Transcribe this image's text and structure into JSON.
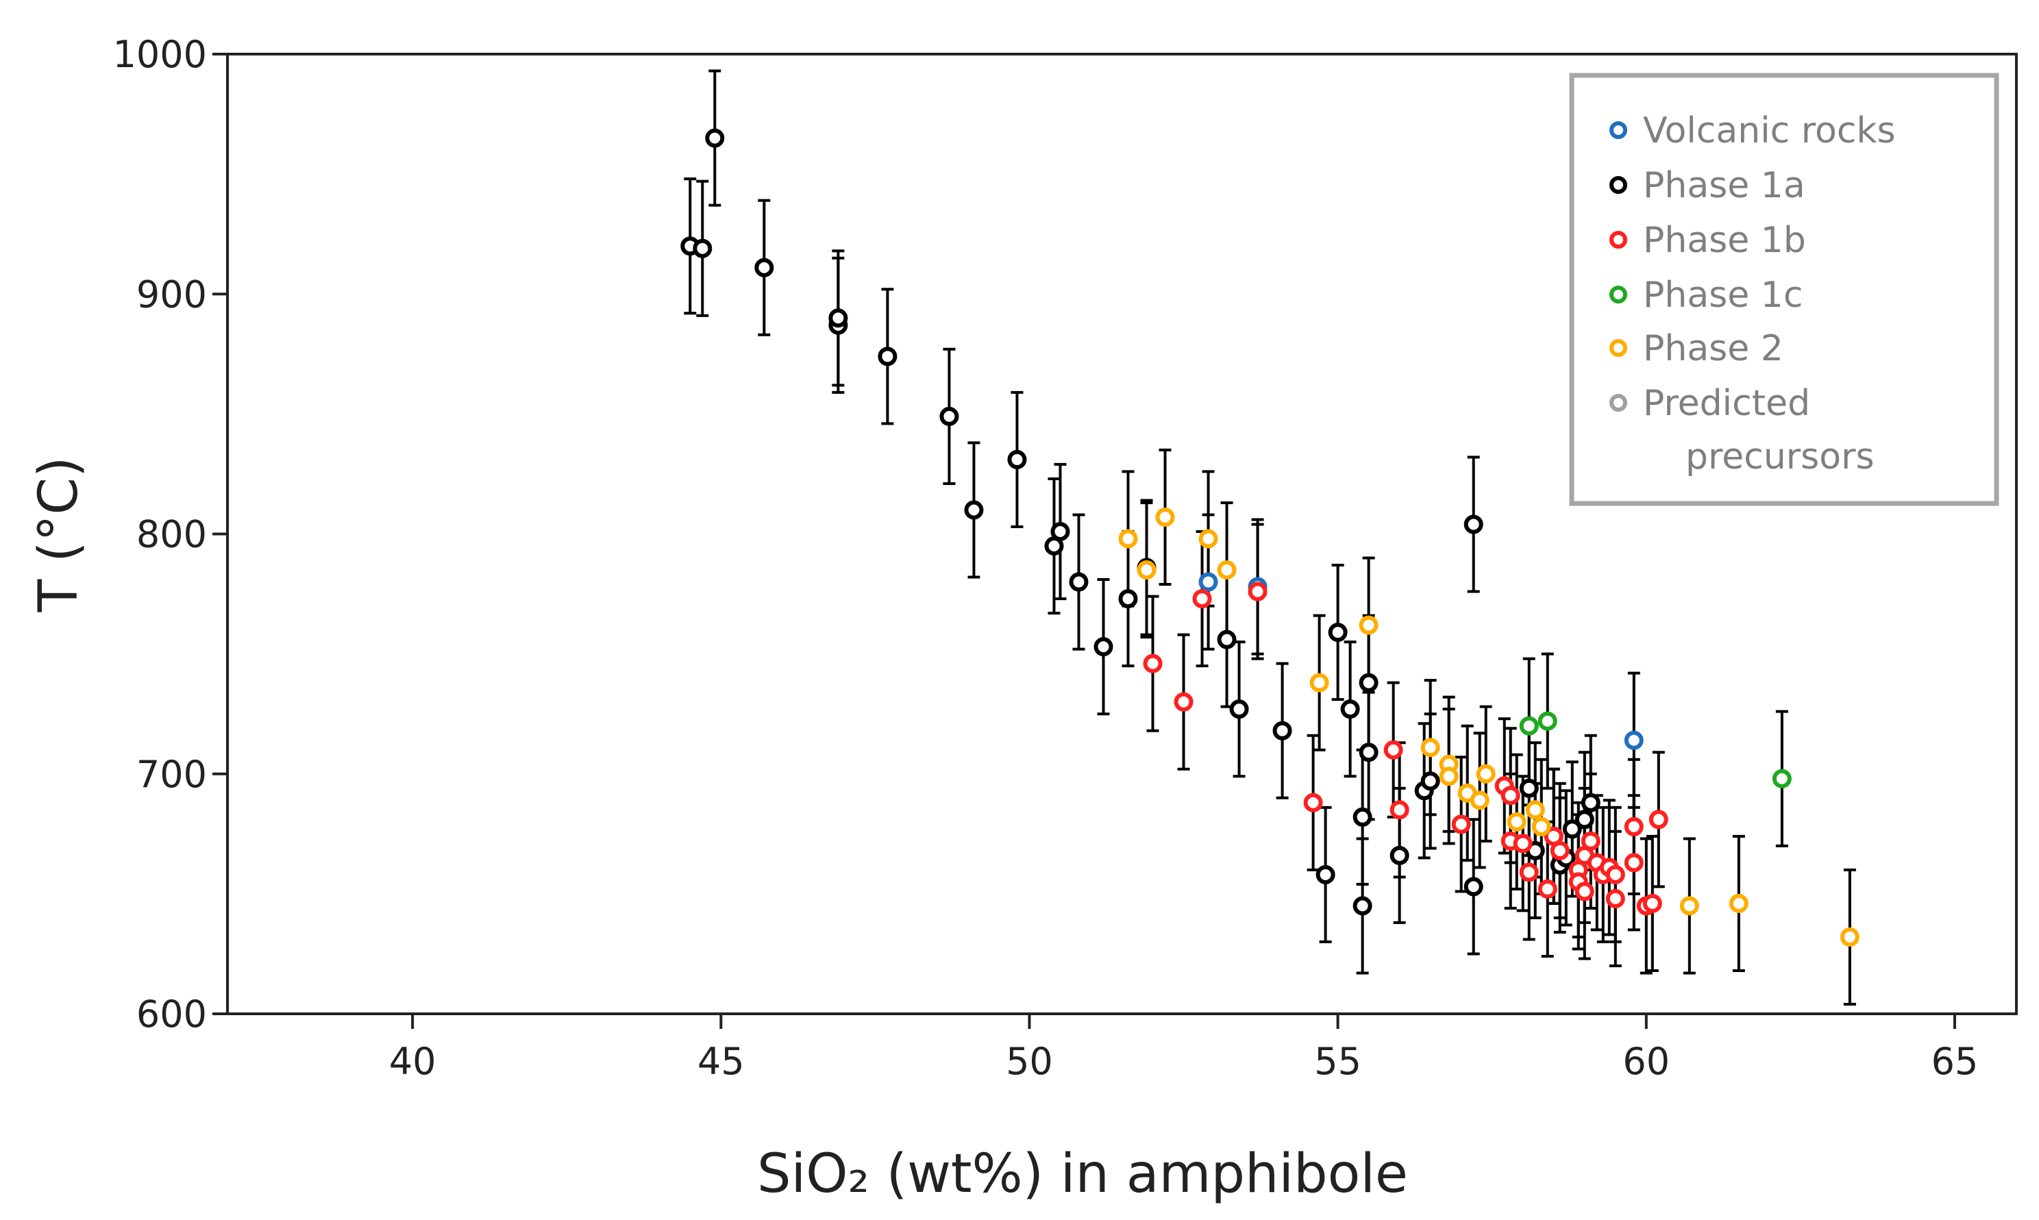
{
  "chart_data": {
    "type": "scatter",
    "title": "",
    "xlabel": "SiO₂ (wt%) in amphibole",
    "ylabel": "T (°C)",
    "xlim": [
      37,
      66
    ],
    "ylim": [
      600,
      1000
    ],
    "xticks": [
      40,
      45,
      50,
      55,
      60,
      65
    ],
    "yticks": [
      600,
      700,
      800,
      900,
      1000
    ],
    "error_bar_halfwidth": 28,
    "grid": false,
    "legend_position": "top-right",
    "legend": [
      {
        "label": "Volcanic rocks",
        "color": "#1f6fbf"
      },
      {
        "label": "Phase 1a",
        "color": "#000000"
      },
      {
        "label": "Phase 1b",
        "color": "#ff2020"
      },
      {
        "label": "Phase 1c",
        "color": "#1fa81f"
      },
      {
        "label": "Phase 2",
        "color": "#ffad00"
      },
      {
        "label": "Predicted",
        "color": "#a0a0a0"
      },
      {
        "label": "precursors",
        "color": ""
      }
    ],
    "series": [
      {
        "name": "Volcanic rocks",
        "color": "#1f6fbf",
        "points": [
          [
            52.9,
            780
          ],
          [
            53.7,
            778
          ],
          [
            59.8,
            714
          ]
        ]
      },
      {
        "name": "Phase 1a",
        "color": "#000000",
        "points": [
          [
            44.5,
            920
          ],
          [
            44.7,
            919
          ],
          [
            44.9,
            965
          ],
          [
            45.7,
            911
          ],
          [
            46.9,
            887
          ],
          [
            46.9,
            890
          ],
          [
            47.7,
            874
          ],
          [
            48.7,
            849
          ],
          [
            49.1,
            810
          ],
          [
            49.8,
            831
          ],
          [
            50.4,
            795
          ],
          [
            50.5,
            801
          ],
          [
            50.8,
            780
          ],
          [
            51.2,
            753
          ],
          [
            51.6,
            773
          ],
          [
            51.9,
            786
          ],
          [
            53.2,
            756
          ],
          [
            53.4,
            727
          ],
          [
            54.1,
            718
          ],
          [
            54.8,
            658
          ],
          [
            55.0,
            759
          ],
          [
            55.2,
            727
          ],
          [
            55.4,
            645
          ],
          [
            55.4,
            682
          ],
          [
            55.5,
            738
          ],
          [
            55.5,
            709
          ],
          [
            56.0,
            666
          ],
          [
            56.4,
            693
          ],
          [
            56.5,
            697
          ],
          [
            57.2,
            653
          ],
          [
            57.2,
            804
          ],
          [
            58.1,
            694
          ],
          [
            58.2,
            668
          ],
          [
            58.5,
            674
          ],
          [
            58.6,
            662
          ],
          [
            58.7,
            665
          ],
          [
            58.8,
            677
          ],
          [
            59.0,
            681
          ],
          [
            59.1,
            688
          ]
        ]
      },
      {
        "name": "Phase 1b",
        "color": "#ff2020",
        "points": [
          [
            52.0,
            746
          ],
          [
            52.5,
            730
          ],
          [
            52.8,
            773
          ],
          [
            53.7,
            776
          ],
          [
            54.6,
            688
          ],
          [
            55.9,
            710
          ],
          [
            56.0,
            685
          ],
          [
            57.0,
            679
          ],
          [
            57.7,
            695
          ],
          [
            57.8,
            691
          ],
          [
            57.8,
            672
          ],
          [
            58.0,
            671
          ],
          [
            58.1,
            659
          ],
          [
            58.4,
            652
          ],
          [
            58.5,
            674
          ],
          [
            58.6,
            668
          ],
          [
            58.9,
            660
          ],
          [
            58.9,
            655
          ],
          [
            59.0,
            666
          ],
          [
            59.0,
            651
          ],
          [
            59.1,
            672
          ],
          [
            59.2,
            663
          ],
          [
            59.3,
            658
          ],
          [
            59.4,
            661
          ],
          [
            59.5,
            648
          ],
          [
            59.5,
            658
          ],
          [
            59.8,
            663
          ],
          [
            59.8,
            678
          ],
          [
            60.0,
            645
          ],
          [
            60.1,
            646
          ],
          [
            60.2,
            681
          ]
        ]
      },
      {
        "name": "Phase 1c",
        "color": "#1fa81f",
        "points": [
          [
            58.1,
            720
          ],
          [
            58.4,
            722
          ],
          [
            62.2,
            698
          ]
        ]
      },
      {
        "name": "Phase 2",
        "color": "#ffad00",
        "points": [
          [
            51.6,
            798
          ],
          [
            51.9,
            785
          ],
          [
            52.2,
            807
          ],
          [
            52.9,
            798
          ],
          [
            53.2,
            785
          ],
          [
            54.7,
            738
          ],
          [
            55.5,
            762
          ],
          [
            56.5,
            711
          ],
          [
            56.8,
            704
          ],
          [
            56.8,
            699
          ],
          [
            57.1,
            692
          ],
          [
            57.3,
            689
          ],
          [
            57.4,
            700
          ],
          [
            57.9,
            680
          ],
          [
            58.2,
            685
          ],
          [
            58.3,
            678
          ],
          [
            60.7,
            645
          ],
          [
            61.5,
            646
          ],
          [
            63.3,
            632
          ]
        ]
      }
    ]
  }
}
